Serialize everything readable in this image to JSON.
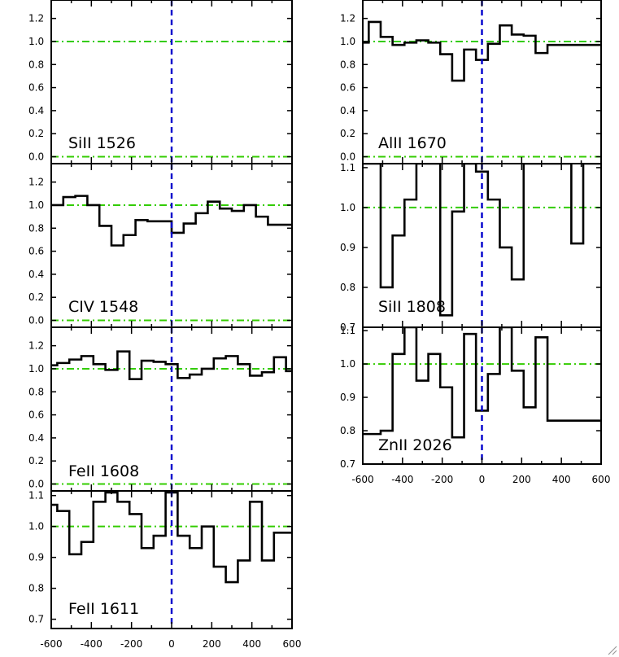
{
  "chart_data": [
    {
      "type": "line",
      "step": true,
      "label": "SiII 1526",
      "xlim": [
        -600,
        600
      ],
      "ylim": [
        -0.06,
        1.36
      ],
      "yticks": [
        0.0,
        0.2,
        0.4,
        0.6,
        0.8,
        1.0,
        1.2
      ],
      "ytick_labels": [
        "0.0",
        "0.2",
        "0.4",
        "0.6",
        "0.8",
        "1.0",
        "1.2"
      ],
      "continuum": 1.0,
      "zero_line": 0.0,
      "series": [
        {
          "x": [],
          "y": []
        }
      ]
    },
    {
      "type": "line",
      "step": true,
      "label": "CIV 1548",
      "xlim": [
        -600,
        600
      ],
      "ylim": [
        -0.06,
        1.36
      ],
      "yticks": [
        0.0,
        0.2,
        0.4,
        0.6,
        0.8,
        1.0,
        1.2
      ],
      "ytick_labels": [
        "0.0",
        "0.2",
        "0.4",
        "0.6",
        "0.8",
        "1.0",
        "1.2"
      ],
      "continuum": 1.0,
      "zero_line": 0.0,
      "series": [
        {
          "x": [
            -600,
            -540,
            -480,
            -420,
            -360,
            -300,
            -240,
            -180,
            -120,
            -60,
            0,
            60,
            120,
            180,
            240,
            300,
            360,
            420,
            480,
            540,
            600
          ],
          "y": [
            1.0,
            1.07,
            1.08,
            1.0,
            0.82,
            0.65,
            0.74,
            0.87,
            0.86,
            0.86,
            0.76,
            0.84,
            0.93,
            1.03,
            0.97,
            0.95,
            1.0,
            0.9,
            0.83,
            0.83,
            0.83
          ]
        }
      ]
    },
    {
      "type": "line",
      "step": true,
      "label": "FeII 1608",
      "xlim": [
        -600,
        600
      ],
      "ylim": [
        -0.06,
        1.36
      ],
      "yticks": [
        0.0,
        0.2,
        0.4,
        0.6,
        0.8,
        1.0,
        1.2
      ],
      "ytick_labels": [
        "0.0",
        "0.2",
        "0.4",
        "0.6",
        "0.8",
        "1.0",
        "1.2"
      ],
      "continuum": 1.0,
      "zero_line": 0.0,
      "series": [
        {
          "x": [
            -600,
            -570,
            -510,
            -450,
            -390,
            -330,
            -270,
            -210,
            -150,
            -90,
            -30,
            30,
            90,
            150,
            210,
            270,
            330,
            390,
            450,
            510,
            570,
            600
          ],
          "y": [
            1.03,
            1.05,
            1.08,
            1.11,
            1.04,
            0.99,
            1.15,
            0.91,
            1.07,
            1.06,
            1.04,
            0.92,
            0.95,
            1.0,
            1.09,
            1.11,
            1.04,
            0.94,
            0.97,
            1.1,
            0.98,
            0.98
          ]
        }
      ]
    },
    {
      "type": "line",
      "step": true,
      "label": "FeII 1611",
      "xlim": [
        -600,
        600
      ],
      "ylim": [
        0.67,
        1.115
      ],
      "yticks": [
        0.7,
        0.8,
        0.9,
        1.0,
        1.1
      ],
      "ytick_labels": [
        "0.7",
        "0.8",
        "0.9",
        "1.0",
        "1.1"
      ],
      "continuum": 1.0,
      "xticks": [
        -600,
        -400,
        -200,
        0,
        200,
        400,
        600
      ],
      "xtick_labels": [
        "-600",
        "-400",
        "-200",
        "0",
        "200",
        "400",
        "600"
      ],
      "series": [
        {
          "x": [
            -600,
            -570,
            -510,
            -450,
            -390,
            -330,
            -270,
            -210,
            -150,
            -90,
            -30,
            30,
            90,
            150,
            210,
            270,
            330,
            390,
            450,
            510,
            570,
            600
          ],
          "y": [
            1.07,
            1.05,
            0.91,
            0.95,
            1.08,
            1.11,
            1.08,
            1.04,
            0.93,
            0.97,
            1.11,
            0.97,
            0.93,
            1.0,
            0.87,
            0.82,
            0.89,
            1.08,
            0.89,
            0.98,
            0.98,
            0.98
          ]
        }
      ]
    },
    {
      "type": "line",
      "step": true,
      "label": "AlII 1670",
      "xlim": [
        -600,
        600
      ],
      "ylim": [
        -0.06,
        1.36
      ],
      "yticks": [
        0.0,
        0.2,
        0.4,
        0.6,
        0.8,
        1.0,
        1.2
      ],
      "ytick_labels": [
        "0.0",
        "0.2",
        "0.4",
        "0.6",
        "0.8",
        "1.0",
        "1.2"
      ],
      "continuum": 1.0,
      "zero_line": 0.0,
      "series": [
        {
          "x": [
            -600,
            -570,
            -510,
            -450,
            -390,
            -330,
            -270,
            -210,
            -150,
            -90,
            -30,
            30,
            90,
            150,
            210,
            270,
            330,
            390,
            450,
            510,
            570,
            600
          ],
          "y": [
            0.99,
            1.17,
            1.04,
            0.97,
            0.99,
            1.01,
            0.99,
            0.89,
            0.66,
            0.93,
            0.84,
            0.98,
            1.14,
            1.06,
            1.05,
            0.9,
            0.97,
            0.97,
            0.97,
            0.97,
            0.97,
            0.97
          ]
        }
      ]
    },
    {
      "type": "line",
      "step": true,
      "label": "SiII 1808",
      "xlim": [
        -600,
        600
      ],
      "ylim": [
        0.7,
        1.11
      ],
      "yticks": [
        0.7,
        0.8,
        0.9,
        1.0,
        1.1
      ],
      "ytick_labels": [
        "0.7",
        "0.8",
        "0.9",
        "1.0",
        "1.1"
      ],
      "continuum": 1.0,
      "series": [
        {
          "x": [
            -600,
            -570,
            -510,
            -450,
            -390,
            -330,
            -270,
            -210,
            -150,
            -90,
            -30,
            30,
            90,
            150,
            210,
            270,
            330,
            390,
            450,
            510,
            570,
            600
          ],
          "y": [
            1.11,
            1.11,
            0.8,
            0.93,
            1.02,
            1.11,
            1.11,
            0.73,
            0.99,
            1.11,
            1.09,
            1.02,
            0.9,
            0.82,
            1.11,
            1.11,
            1.11,
            1.11,
            0.91,
            1.11,
            1.11,
            1.11
          ]
        }
      ]
    },
    {
      "type": "line",
      "step": true,
      "label": "ZnII 2026",
      "xlim": [
        -600,
        600
      ],
      "ylim": [
        0.7,
        1.11
      ],
      "yticks": [
        0.7,
        0.8,
        0.9,
        1.0,
        1.1
      ],
      "ytick_labels": [
        "0.7",
        "0.8",
        "0.9",
        "1.0",
        "1.1"
      ],
      "continuum": 1.0,
      "xticks": [
        -600,
        -400,
        -200,
        0,
        200,
        400,
        600
      ],
      "xtick_labels": [
        "-600",
        "-400",
        "-200",
        "0",
        "200",
        "400",
        "600"
      ],
      "series": [
        {
          "x": [
            -600,
            -570,
            -510,
            -450,
            -390,
            -330,
            -270,
            -210,
            -150,
            -90,
            -30,
            30,
            90,
            150,
            210,
            270,
            330,
            390,
            450,
            510,
            570,
            600
          ],
          "y": [
            0.79,
            0.79,
            0.8,
            1.03,
            1.11,
            0.95,
            1.03,
            0.93,
            0.78,
            1.09,
            0.86,
            0.97,
            1.11,
            0.98,
            0.87,
            1.08,
            0.83,
            0.83,
            0.83,
            0.83,
            0.83,
            0.83
          ]
        }
      ]
    }
  ],
  "colors": {
    "axis": "#000000",
    "spectrum": "#000000",
    "continuum_line": "#33cc00",
    "velocity_zero_line": "#0000cc"
  },
  "icons": {
    "resize_grip": "resize-grip-icon"
  }
}
